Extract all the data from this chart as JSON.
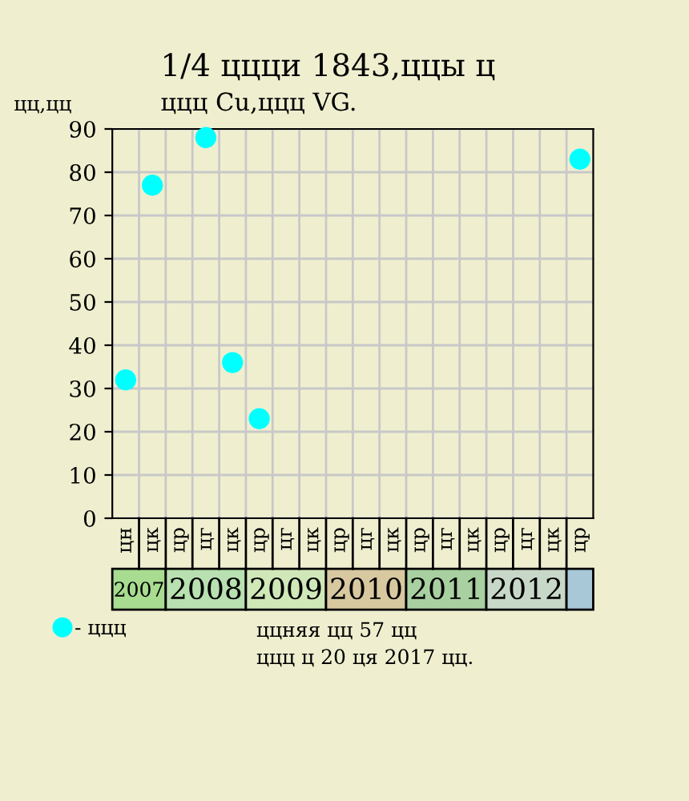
{
  "chart_data": {
    "type": "scatter",
    "title": "1/4 ццци 1843,ццы ц",
    "subtitle": "ццц Cu,ццц VG.",
    "ylabel": "цц,цц",
    "categories": [
      "цн",
      "цк",
      "цр",
      "цг",
      "цк",
      "цр",
      "цг",
      "цк",
      "цр",
      "цг",
      "цк",
      "цр",
      "цг",
      "цк",
      "цр",
      "цг",
      "цк",
      "цр"
    ],
    "series": [
      {
        "name": "- ццц",
        "color": "#00ffff",
        "values": [
          32,
          77,
          null,
          88,
          36,
          23,
          null,
          null,
          null,
          null,
          null,
          null,
          null,
          null,
          null,
          null,
          null,
          83
        ]
      }
    ],
    "ylim": [
      0,
      90
    ],
    "yticks": [
      0,
      10,
      20,
      30,
      40,
      50,
      60,
      70,
      80,
      90
    ],
    "annotations": [
      "2007",
      "2008",
      "2009",
      "2010",
      "2011",
      "2012",
      "ццняя цц 57 цц",
      "ццц ц 20 ця 2017 цц."
    ],
    "grid": true,
    "legend": "bottom left",
    "marker": "circle"
  }
}
